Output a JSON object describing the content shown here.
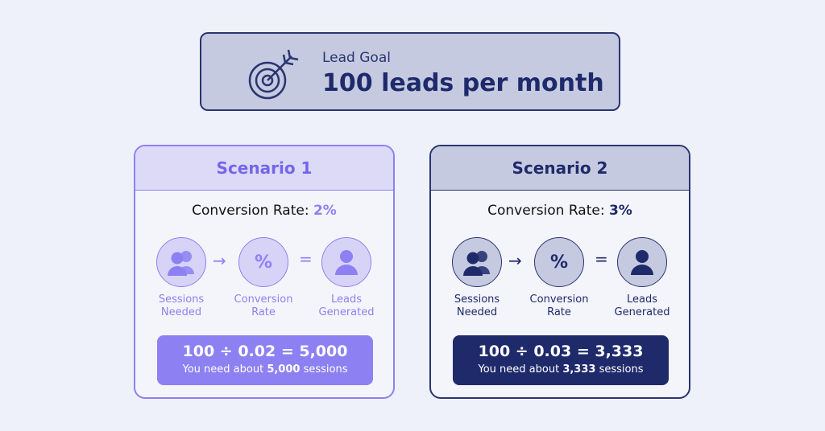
{
  "goal": {
    "label": "Lead Goal",
    "value": "100 leads per month",
    "icon": "target-dart-icon"
  },
  "captions": {
    "sessions_line1": "Sessions",
    "sessions_line2": "Needed",
    "rate_line1": "Conversion",
    "rate_line2": "Rate",
    "leads_line1": "Leads",
    "leads_line2": "Generated",
    "percent_symbol": "%",
    "arrow": "→",
    "equals": "="
  },
  "scenarios": [
    {
      "title": "Scenario 1",
      "rate_label": "Conversion Rate: ",
      "rate_value": "2%",
      "formula": "100 ÷ 0.02 = 5,000",
      "note_prefix": "You need about ",
      "note_value": "5,000",
      "note_suffix": " sessions",
      "accent": "#8d80f2"
    },
    {
      "title": "Scenario 2",
      "rate_label": "Conversion Rate: ",
      "rate_value": "3%",
      "formula": "100 ÷ 0.03 = 3,333",
      "note_prefix": "You need about ",
      "note_value": "3,333",
      "note_suffix": " sessions",
      "accent": "#1f2a6b"
    }
  ]
}
